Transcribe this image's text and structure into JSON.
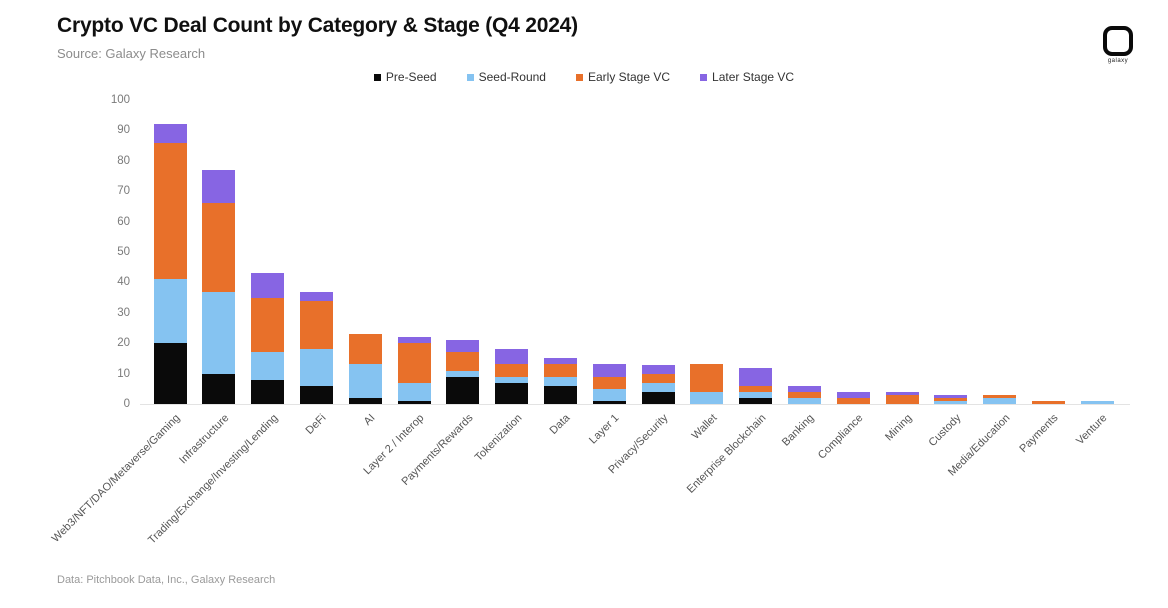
{
  "header": {
    "title": "Crypto VC Deal Count by Category & Stage (Q4 2024)",
    "source": "Source: Galaxy Research",
    "logo_text": "galaxy"
  },
  "footer": {
    "text": "Data: Pitchbook Data, Inc., Galaxy Research"
  },
  "chart_data": {
    "type": "bar",
    "stacked": true,
    "title": "Crypto VC Deal Count by Category & Stage (Q4 2024)",
    "xlabel": "",
    "ylabel": "",
    "ylim": [
      0,
      100
    ],
    "yticks": [
      0,
      10,
      20,
      30,
      40,
      50,
      60,
      70,
      80,
      90,
      100
    ],
    "grid": false,
    "legend_position": "top",
    "categories": [
      "Web3/NFT/DAO/Metaverse/Gaming",
      "Infrastructure",
      "Trading/Exchange/Investing/Lending",
      "DeFi",
      "AI",
      "Layer 2 / Interop",
      "Payments/Rewards",
      "Tokenization",
      "Data",
      "Layer 1",
      "Privacy/Security",
      "Wallet",
      "Enterprise Blockchain",
      "Banking",
      "Compliance",
      "Mining",
      "Custody",
      "Media/Education",
      "Payments",
      "Venture"
    ],
    "series": [
      {
        "name": "Pre-Seed",
        "color": "#0a0a0a",
        "values": [
          20,
          10,
          8,
          6,
          2,
          1,
          9,
          7,
          6,
          1,
          4,
          0,
          2,
          0,
          0,
          0,
          0,
          0,
          0,
          0
        ]
      },
      {
        "name": "Seed-Round",
        "color": "#85c3f1",
        "values": [
          21,
          27,
          9,
          12,
          11,
          6,
          2,
          2,
          3,
          4,
          3,
          4,
          2,
          2,
          0,
          0,
          1,
          2,
          0,
          1
        ]
      },
      {
        "name": "Early Stage VC",
        "color": "#e8702a",
        "values": [
          45,
          29,
          18,
          16,
          10,
          13,
          6,
          4,
          4,
          4,
          3,
          9,
          2,
          2,
          2,
          3,
          1,
          1,
          1,
          0
        ]
      },
      {
        "name": "Later Stage VC",
        "color": "#8765e3",
        "values": [
          6,
          11,
          8,
          3,
          0,
          2,
          4,
          5,
          2,
          4,
          3,
          0,
          6,
          2,
          2,
          1,
          1,
          0,
          0,
          0
        ]
      }
    ]
  }
}
